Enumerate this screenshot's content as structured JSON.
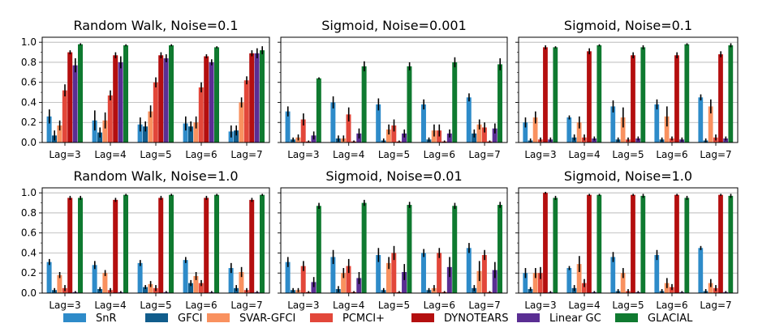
{
  "colors": {
    "SnR": "#2e8bc9",
    "GFCI": "#115d8c",
    "SVAR-GFCI": "#f9915f",
    "PCMCI+": "#e2473a",
    "DYNOTEARS": "#b40f0f",
    "Linear GC": "#5a2e93",
    "GLACIAL": "#0f7a30"
  },
  "legend": [
    "SnR",
    "GFCI",
    "SVAR-GFCI",
    "PCMCI+",
    "DYNOTEARS",
    "Linear GC",
    "GLACIAL"
  ],
  "chart_data": [
    {
      "type": "bar",
      "title": "Random Walk, Noise=0.1",
      "categories": [
        "Lag=3",
        "Lag=4",
        "Lag=5",
        "Lag=6",
        "Lag=7"
      ],
      "ylim": [
        0,
        1.05
      ],
      "yticks": [
        "0.0",
        "0.2",
        "0.4",
        "0.6",
        "0.8",
        "1.0"
      ],
      "grid": "y",
      "series": [
        {
          "name": "SnR",
          "values": [
            0.26,
            0.22,
            0.18,
            0.19,
            0.11
          ],
          "err": [
            0.07,
            0.1,
            0.07,
            0.07,
            0.06
          ]
        },
        {
          "name": "GFCI",
          "values": [
            0.07,
            0.1,
            0.16,
            0.16,
            0.12
          ],
          "err": [
            0.05,
            0.05,
            0.05,
            0.05,
            0.05
          ]
        },
        {
          "name": "SVAR-GFCI",
          "values": [
            0.17,
            0.22,
            0.31,
            0.2,
            0.4
          ],
          "err": [
            0.05,
            0.08,
            0.06,
            0.06,
            0.05
          ]
        },
        {
          "name": "PCMCI+",
          "values": [
            0.52,
            0.47,
            0.6,
            0.55,
            0.62
          ],
          "err": [
            0.06,
            0.05,
            0.05,
            0.05,
            0.04
          ]
        },
        {
          "name": "DYNOTEARS",
          "values": [
            0.9,
            0.87,
            0.87,
            0.86,
            0.89
          ],
          "err": [
            0.02,
            0.03,
            0.03,
            0.02,
            0.03
          ]
        },
        {
          "name": "Linear GC",
          "values": [
            0.77,
            0.8,
            0.84,
            0.8,
            0.89
          ],
          "err": [
            0.07,
            0.06,
            0.04,
            0.03,
            0.05
          ]
        },
        {
          "name": "GLACIAL",
          "values": [
            0.98,
            0.97,
            0.97,
            0.95,
            0.92
          ],
          "err": [
            0.01,
            0.01,
            0.01,
            0.01,
            0.04
          ]
        }
      ]
    },
    {
      "type": "bar",
      "title": "Sigmoid, Noise=0.001",
      "categories": [
        "Lag=3",
        "Lag=4",
        "Lag=5",
        "Lag=6",
        "Lag=7"
      ],
      "ylim": [
        0,
        1.05
      ],
      "yticks": [
        "",
        "",
        "",
        "",
        "",
        ""
      ],
      "grid": "y",
      "series": [
        {
          "name": "SnR",
          "values": [
            0.31,
            0.4,
            0.38,
            0.38,
            0.45
          ],
          "err": [
            0.05,
            0.06,
            0.06,
            0.05,
            0.04
          ]
        },
        {
          "name": "GFCI",
          "values": [
            0.03,
            0.04,
            0.02,
            0.03,
            0.09
          ],
          "err": [
            0.02,
            0.03,
            0.02,
            0.02,
            0.04
          ]
        },
        {
          "name": "SVAR-GFCI",
          "values": [
            0.05,
            0.04,
            0.13,
            0.12,
            0.18
          ],
          "err": [
            0.03,
            0.03,
            0.05,
            0.06,
            0.05
          ]
        },
        {
          "name": "PCMCI+",
          "values": [
            0.23,
            0.28,
            0.17,
            0.12,
            0.15
          ],
          "err": [
            0.06,
            0.07,
            0.06,
            0.06,
            0.05
          ]
        },
        {
          "name": "DYNOTEARS",
          "values": [
            0.01,
            0.01,
            0.01,
            0.01,
            0.01
          ],
          "err": [
            0.01,
            0.01,
            0.01,
            0.01,
            0.01
          ]
        },
        {
          "name": "Linear GC",
          "values": [
            0.07,
            0.09,
            0.09,
            0.09,
            0.14
          ],
          "err": [
            0.04,
            0.05,
            0.04,
            0.04,
            0.05
          ]
        },
        {
          "name": "GLACIAL",
          "values": [
            0.64,
            0.76,
            0.76,
            0.8,
            0.78
          ],
          "err": [
            0.01,
            0.05,
            0.04,
            0.05,
            0.06
          ]
        }
      ]
    },
    {
      "type": "bar",
      "title": "Sigmoid, Noise=0.1",
      "categories": [
        "Lag=3",
        "Lag=4",
        "Lag=5",
        "Lag=6",
        "Lag=7"
      ],
      "ylim": [
        0,
        1.05
      ],
      "yticks": [
        "",
        "",
        "",
        "",
        "",
        ""
      ],
      "grid": "y",
      "series": [
        {
          "name": "SnR",
          "values": [
            0.2,
            0.25,
            0.36,
            0.38,
            0.45
          ],
          "err": [
            0.05,
            0.02,
            0.06,
            0.05,
            0.03
          ]
        },
        {
          "name": "GFCI",
          "values": [
            0.02,
            0.05,
            0.03,
            0.03,
            0.02
          ],
          "err": [
            0.02,
            0.03,
            0.02,
            0.02,
            0.02
          ]
        },
        {
          "name": "SVAR-GFCI",
          "values": [
            0.25,
            0.2,
            0.25,
            0.26,
            0.36
          ],
          "err": [
            0.06,
            0.06,
            0.1,
            0.1,
            0.07
          ]
        },
        {
          "name": "PCMCI+",
          "values": [
            0.03,
            0.05,
            0.03,
            0.04,
            0.05
          ],
          "err": [
            0.02,
            0.03,
            0.02,
            0.02,
            0.03
          ]
        },
        {
          "name": "DYNOTEARS",
          "values": [
            0.95,
            0.91,
            0.87,
            0.87,
            0.88
          ],
          "err": [
            0.02,
            0.03,
            0.03,
            0.03,
            0.03
          ]
        },
        {
          "name": "Linear GC",
          "values": [
            0.03,
            0.04,
            0.04,
            0.03,
            0.04
          ],
          "err": [
            0.02,
            0.02,
            0.02,
            0.02,
            0.02
          ]
        },
        {
          "name": "GLACIAL",
          "values": [
            0.95,
            0.97,
            0.95,
            0.98,
            0.97
          ],
          "err": [
            0.01,
            0.01,
            0.02,
            0.01,
            0.02
          ]
        }
      ]
    },
    {
      "type": "bar",
      "title": "Random Walk, Noise=1.0",
      "categories": [
        "Lag=3",
        "Lag=4",
        "Lag=5",
        "Lag=6",
        "Lag=7"
      ],
      "ylim": [
        0,
        1.05
      ],
      "yticks": [
        "0.0",
        "0.2",
        "0.4",
        "0.6",
        "0.8",
        "1.0"
      ],
      "grid": "y",
      "series": [
        {
          "name": "SnR",
          "values": [
            0.31,
            0.28,
            0.3,
            0.33,
            0.25
          ],
          "err": [
            0.03,
            0.04,
            0.03,
            0.03,
            0.05
          ]
        },
        {
          "name": "GFCI",
          "values": [
            0.03,
            0.04,
            0.06,
            0.1,
            0.05
          ],
          "err": [
            0.02,
            0.02,
            0.02,
            0.03,
            0.03
          ]
        },
        {
          "name": "SVAR-GFCI",
          "values": [
            0.18,
            0.2,
            0.09,
            0.17,
            0.21
          ],
          "err": [
            0.03,
            0.03,
            0.03,
            0.04,
            0.05
          ]
        },
        {
          "name": "PCMCI+",
          "values": [
            0.05,
            0.03,
            0.05,
            0.1,
            0.03
          ],
          "err": [
            0.03,
            0.02,
            0.03,
            0.03,
            0.02
          ]
        },
        {
          "name": "DYNOTEARS",
          "values": [
            0.95,
            0.93,
            0.95,
            0.95,
            0.93
          ],
          "err": [
            0.02,
            0.02,
            0.02,
            0.02,
            0.02
          ]
        },
        {
          "name": "Linear GC",
          "values": [
            0.01,
            0.01,
            0.01,
            0.01,
            0.01
          ],
          "err": [
            0.01,
            0.01,
            0.01,
            0.01,
            0.01
          ]
        },
        {
          "name": "GLACIAL",
          "values": [
            0.95,
            0.98,
            0.98,
            0.98,
            0.98
          ],
          "err": [
            0.02,
            0.01,
            0.01,
            0.01,
            0.01
          ]
        }
      ]
    },
    {
      "type": "bar",
      "title": "Sigmoid, Noise=0.01",
      "categories": [
        "Lag=3",
        "Lag=4",
        "Lag=5",
        "Lag=6",
        "Lag=7"
      ],
      "ylim": [
        0,
        1.05
      ],
      "yticks": [
        "",
        "",
        "",
        "",
        "",
        ""
      ],
      "grid": "y",
      "series": [
        {
          "name": "SnR",
          "values": [
            0.31,
            0.36,
            0.38,
            0.4,
            0.45
          ],
          "err": [
            0.05,
            0.07,
            0.07,
            0.04,
            0.05
          ]
        },
        {
          "name": "GFCI",
          "values": [
            0.03,
            0.04,
            0.03,
            0.03,
            0.05
          ],
          "err": [
            0.02,
            0.03,
            0.02,
            0.02,
            0.03
          ]
        },
        {
          "name": "SVAR-GFCI",
          "values": [
            0.03,
            0.2,
            0.3,
            0.05,
            0.22
          ],
          "err": [
            0.02,
            0.05,
            0.06,
            0.03,
            0.1
          ]
        },
        {
          "name": "PCMCI+",
          "values": [
            0.27,
            0.27,
            0.4,
            0.4,
            0.38
          ],
          "err": [
            0.05,
            0.07,
            0.07,
            0.05,
            0.05
          ]
        },
        {
          "name": "DYNOTEARS",
          "values": [
            0.01,
            0.01,
            0.01,
            0.01,
            0.01
          ],
          "err": [
            0.01,
            0.01,
            0.01,
            0.01,
            0.01
          ]
        },
        {
          "name": "Linear GC",
          "values": [
            0.11,
            0.15,
            0.21,
            0.26,
            0.23
          ],
          "err": [
            0.05,
            0.06,
            0.08,
            0.1,
            0.08
          ]
        },
        {
          "name": "GLACIAL",
          "values": [
            0.87,
            0.9,
            0.88,
            0.87,
            0.88
          ],
          "err": [
            0.03,
            0.03,
            0.03,
            0.03,
            0.03
          ]
        }
      ]
    },
    {
      "type": "bar",
      "title": "Sigmoid, Noise=1.0",
      "categories": [
        "Lag=3",
        "Lag=4",
        "Lag=5",
        "Lag=6",
        "Lag=7"
      ],
      "ylim": [
        0,
        1.05
      ],
      "yticks": [
        "",
        "",
        "",
        "",
        "",
        ""
      ],
      "grid": "y",
      "series": [
        {
          "name": "SnR",
          "values": [
            0.2,
            0.25,
            0.36,
            0.38,
            0.45
          ],
          "err": [
            0.05,
            0.02,
            0.05,
            0.05,
            0.02
          ]
        },
        {
          "name": "GFCI",
          "values": [
            0.04,
            0.05,
            0.02,
            0.02,
            0.02
          ],
          "err": [
            0.02,
            0.03,
            0.02,
            0.02,
            0.02
          ]
        },
        {
          "name": "SVAR-GFCI",
          "values": [
            0.2,
            0.29,
            0.2,
            0.1,
            0.1
          ],
          "err": [
            0.05,
            0.08,
            0.05,
            0.05,
            0.04
          ]
        },
        {
          "name": "PCMCI+",
          "values": [
            0.2,
            0.1,
            0.02,
            0.06,
            0.05
          ],
          "err": [
            0.06,
            0.04,
            0.02,
            0.03,
            0.03
          ]
        },
        {
          "name": "DYNOTEARS",
          "values": [
            1.0,
            0.98,
            0.98,
            0.98,
            0.98
          ],
          "err": [
            0.01,
            0.01,
            0.01,
            0.01,
            0.01
          ]
        },
        {
          "name": "Linear GC",
          "values": [
            0.01,
            0.01,
            0.01,
            0.01,
            0.01
          ],
          "err": [
            0.01,
            0.01,
            0.01,
            0.01,
            0.01
          ]
        },
        {
          "name": "GLACIAL",
          "values": [
            0.95,
            0.98,
            0.97,
            0.95,
            0.97
          ],
          "err": [
            0.02,
            0.01,
            0.02,
            0.02,
            0.02
          ]
        }
      ]
    }
  ]
}
